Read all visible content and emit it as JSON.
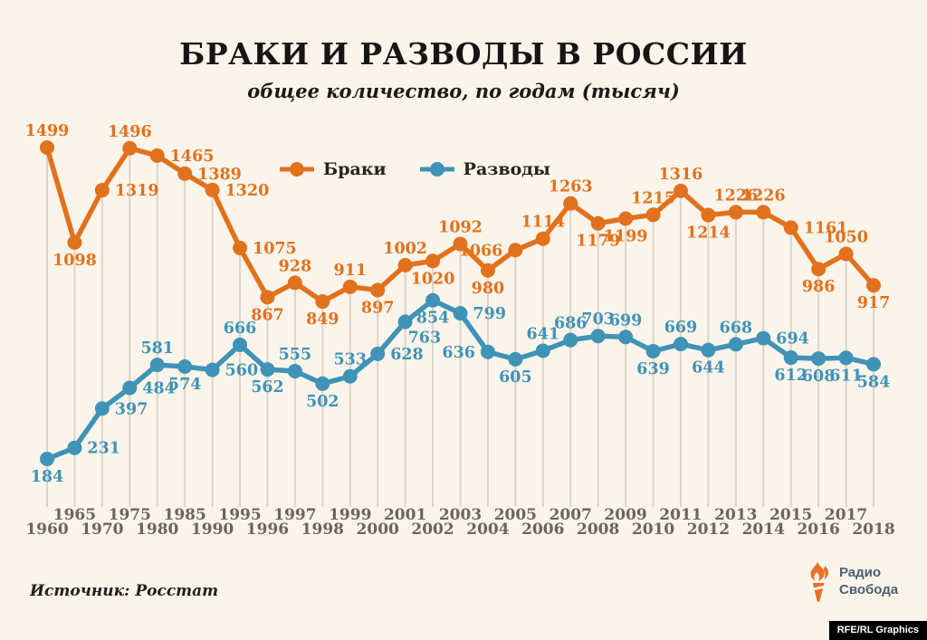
{
  "title": "БРАКИ И РАЗВОДЫ В РОССИИ",
  "subtitle": "общее количество, по годам (тысяч)",
  "legend": {
    "marriages": "Браки",
    "divorces": "Разводы"
  },
  "source": "Источник: Росстат",
  "logo": {
    "line1": "Радио",
    "line2": "Свобода"
  },
  "credit": "RFE/RL Graphics",
  "colors": {
    "marriages": "#E2711D",
    "divorces": "#3F93B6",
    "grid": "#DBD5C8",
    "year_label": "#6B655C",
    "background": "#FAF4EA",
    "logo_text": "#4A6072",
    "torch": "#E8702A"
  },
  "chart_data": {
    "type": "line",
    "title": "БРАКИ И РАЗВОДЫ В РОССИИ",
    "subtitle": "общее количество, по годам (тысяч)",
    "x": [
      1960,
      1965,
      1970,
      1975,
      1980,
      1985,
      1990,
      1995,
      1996,
      1997,
      1998,
      1999,
      2000,
      2001,
      2002,
      2003,
      2004,
      2005,
      2006,
      2007,
      2008,
      2009,
      2010,
      2011,
      2012,
      2013,
      2014,
      2015,
      2016,
      2017,
      2018
    ],
    "series": [
      {
        "name": "Браки",
        "color": "#E2711D",
        "values": [
          1499,
          1098,
          1319,
          1496,
          1465,
          1389,
          1320,
          1075,
          867,
          928,
          849,
          911,
          897,
          1002,
          1020,
          1092,
          980,
          1066,
          1114,
          1263,
          1179,
          1199,
          1215,
          1316,
          1214,
          1226,
          1226,
          1161,
          986,
          1050,
          917
        ],
        "label_positions": [
          "above",
          "below",
          "right",
          "above",
          "right",
          "right",
          "right",
          "right",
          "below",
          "above",
          "below",
          "above",
          "below",
          "above",
          "below",
          "above",
          "below",
          "left",
          "above",
          "above",
          "below",
          "below",
          "above",
          "above",
          "below",
          "above",
          "above",
          "right",
          "below",
          "above",
          "below"
        ]
      },
      {
        "name": "Разводы",
        "color": "#3F93B6",
        "values": [
          184,
          231,
          397,
          484,
          581,
          574,
          560,
          666,
          562,
          555,
          502,
          533,
          628,
          763,
          854,
          799,
          636,
          605,
          641,
          686,
          703,
          699,
          639,
          669,
          644,
          668,
          694,
          612,
          608,
          611,
          584
        ],
        "label_positions": [
          "below",
          "right",
          "right",
          "right",
          "above",
          "below",
          "right",
          "above",
          "below",
          "above",
          "below",
          "above",
          "right",
          "below-right",
          "below",
          "right",
          "left",
          "below",
          "above",
          "above",
          "above",
          "above",
          "below",
          "above",
          "below",
          "above",
          "right",
          "below",
          "below",
          "below",
          "below"
        ]
      }
    ],
    "ylim": [
      0,
      1600
    ],
    "y_axis": "hidden",
    "grid": "vertical-only",
    "point_labels": "visible",
    "legend_position": "top-center",
    "x_tick_layout": "staggered-two-rows"
  }
}
